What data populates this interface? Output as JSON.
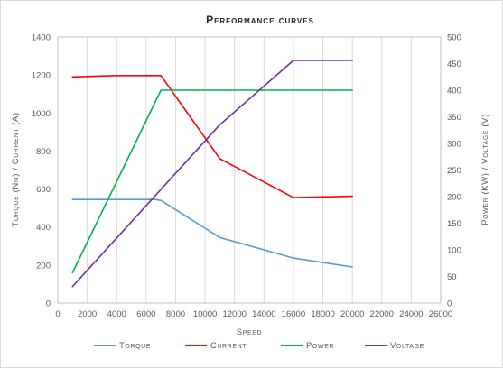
{
  "chart_data": {
    "type": "line",
    "title": "Performance curves",
    "xlabel": "Speed",
    "ylabel_left": "Torque (Nm) / Current  (A)",
    "ylabel_right": "Power (KW) /  Voltage (V)",
    "xlim": [
      0,
      26000
    ],
    "xticks": [
      0,
      2000,
      4000,
      6000,
      8000,
      10000,
      12000,
      14000,
      16000,
      18000,
      20000,
      22000,
      24000,
      26000
    ],
    "ylim_left": [
      0,
      1400
    ],
    "yticks_left": [
      0,
      200,
      400,
      600,
      800,
      1000,
      1200,
      1400
    ],
    "ylim_right": [
      0,
      500
    ],
    "yticks_right": [
      0,
      50,
      100,
      150,
      200,
      250,
      300,
      350,
      400,
      450,
      500
    ],
    "grid": "vertical",
    "legend_position": "bottom",
    "series": [
      {
        "name": "Torque",
        "axis": "left",
        "color": "#5b9bd5",
        "x": [
          1000,
          6600,
          7000,
          11000,
          16000,
          20000
        ],
        "y": [
          545,
          545,
          540,
          345,
          237,
          190
        ]
      },
      {
        "name": "Current",
        "axis": "left",
        "color": "#ff0000",
        "x": [
          1000,
          4000,
          7000,
          11000,
          16000,
          20000
        ],
        "y": [
          1190,
          1197,
          1197,
          760,
          555,
          562
        ]
      },
      {
        "name": "Power",
        "axis": "right",
        "color": "#00b050",
        "x": [
          1000,
          7000,
          20000
        ],
        "y": [
          57,
          400,
          400
        ]
      },
      {
        "name": "Voltage",
        "axis": "right",
        "color": "#7030a0",
        "x": [
          1000,
          11000,
          16000,
          20000
        ],
        "y": [
          31,
          335,
          456,
          456
        ]
      }
    ]
  }
}
